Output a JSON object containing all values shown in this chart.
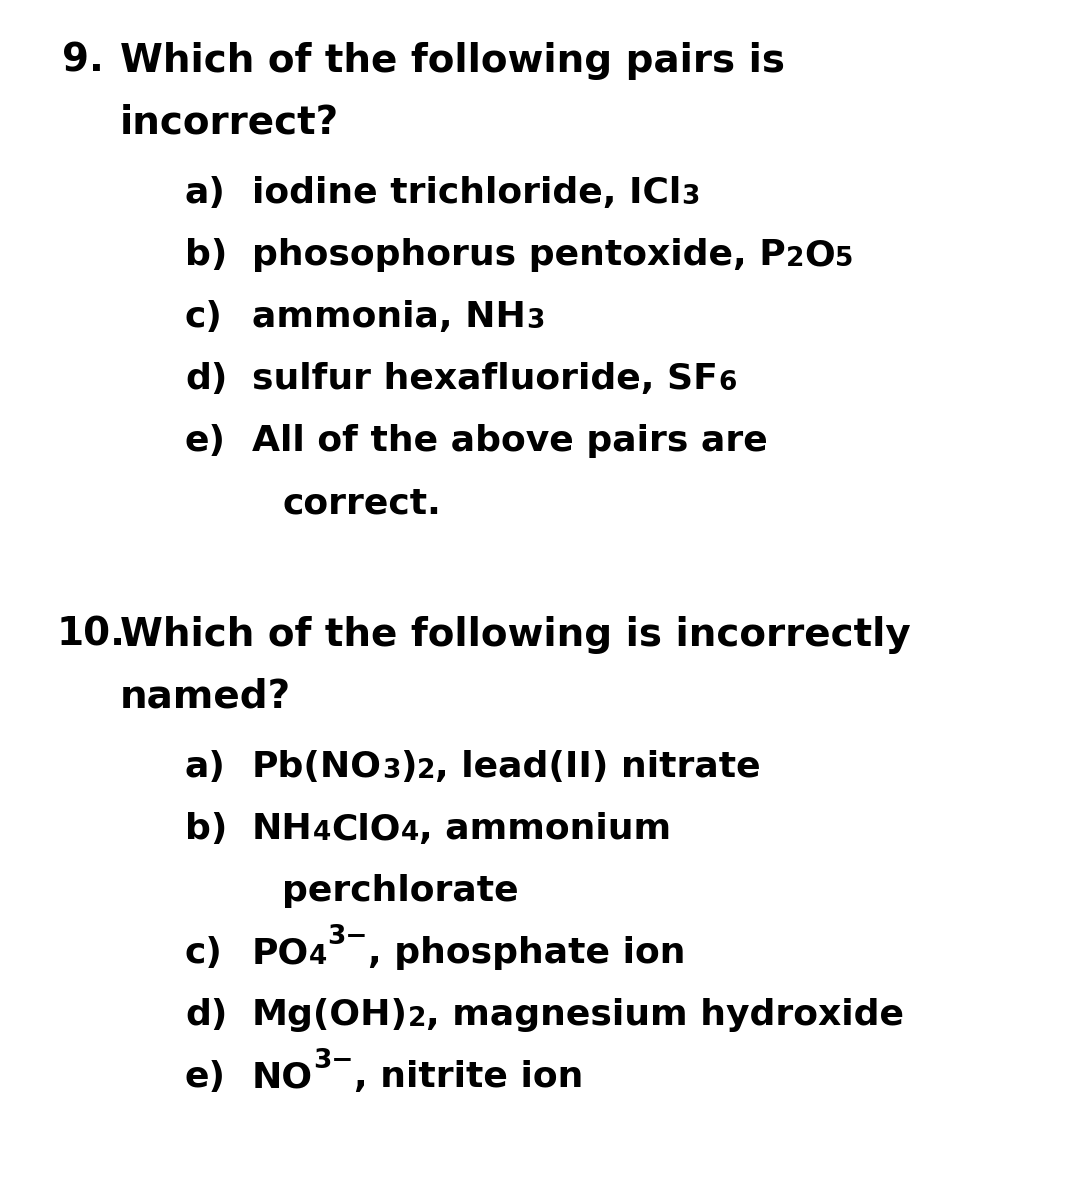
{
  "background_color": "#ffffff",
  "text_color": "#000000",
  "figsize": [
    10.8,
    11.8
  ],
  "dpi": 100,
  "q9_number": "9.",
  "q9_q1": "Which of the following pairs is",
  "q9_q2": "incorrect?",
  "q9_options": [
    {
      "letter": "a)",
      "segments": [
        {
          "text": "iodine trichloride, ICl",
          "type": "normal"
        },
        {
          "text": "3",
          "type": "sub"
        }
      ]
    },
    {
      "letter": "b)",
      "segments": [
        {
          "text": "phosophorus pentoxide, P",
          "type": "normal"
        },
        {
          "text": "2",
          "type": "sub"
        },
        {
          "text": "O",
          "type": "normal"
        },
        {
          "text": "5",
          "type": "sub"
        }
      ]
    },
    {
      "letter": "c)",
      "segments": [
        {
          "text": "ammonia, NH",
          "type": "normal"
        },
        {
          "text": "3",
          "type": "sub"
        }
      ]
    },
    {
      "letter": "d)",
      "segments": [
        {
          "text": "sulfur hexafluoride, SF",
          "type": "normal"
        },
        {
          "text": "6",
          "type": "sub"
        }
      ]
    },
    {
      "letter": "e)",
      "segments": [
        {
          "text": "All of the above pairs are",
          "type": "normal"
        }
      ]
    },
    {
      "letter": "",
      "segments": [
        {
          "text": "correct.",
          "type": "normal"
        }
      ]
    }
  ],
  "q10_number": "10.",
  "q10_q1": "Which of the following is incorrectly",
  "q10_q2": "named?",
  "q10_options": [
    {
      "letter": "a)",
      "segments": [
        {
          "text": "Pb(NO",
          "type": "normal"
        },
        {
          "text": "3",
          "type": "sub"
        },
        {
          "text": ")",
          "type": "normal"
        },
        {
          "text": "2",
          "type": "sub"
        },
        {
          "text": ", lead(II) nitrate",
          "type": "normal"
        }
      ]
    },
    {
      "letter": "b)",
      "segments": [
        {
          "text": "NH",
          "type": "normal"
        },
        {
          "text": "4",
          "type": "sub"
        },
        {
          "text": "ClO",
          "type": "normal"
        },
        {
          "text": "4",
          "type": "sub"
        },
        {
          "text": ", ammonium",
          "type": "normal"
        }
      ]
    },
    {
      "letter": "",
      "segments": [
        {
          "text": "perchlorate",
          "type": "normal"
        }
      ]
    },
    {
      "letter": "c)",
      "segments": [
        {
          "text": "PO",
          "type": "normal"
        },
        {
          "text": "4",
          "type": "sub"
        },
        {
          "text": "3−",
          "type": "sup"
        },
        {
          "text": ", phosphate ion",
          "type": "normal"
        }
      ]
    },
    {
      "letter": "d)",
      "segments": [
        {
          "text": "Mg(OH)",
          "type": "normal"
        },
        {
          "text": "2",
          "type": "sub"
        },
        {
          "text": ", magnesium hydroxide",
          "type": "normal"
        }
      ]
    },
    {
      "letter": "e)",
      "segments": [
        {
          "text": "NO",
          "type": "normal"
        },
        {
          "text": "3−",
          "type": "sup"
        },
        {
          "text": ", nitrite ion",
          "type": "normal"
        }
      ]
    }
  ]
}
